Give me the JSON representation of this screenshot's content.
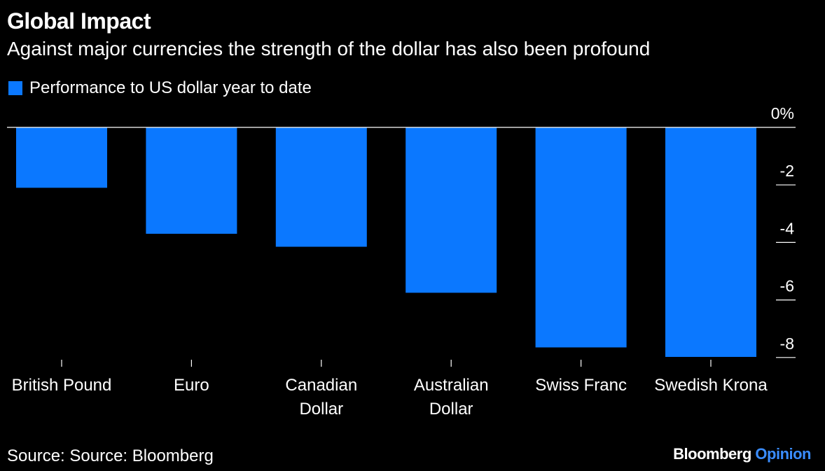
{
  "header": {
    "title": "Global Impact",
    "subtitle": "Against major currencies the strength of the dollar has also been profound"
  },
  "legend": {
    "label": "Performance to US dollar year to date",
    "color": "#0b78ff"
  },
  "footer": {
    "source": "Source: Source: Bloomberg",
    "brand_main": "Bloomberg",
    "brand_accent": "Opinion",
    "brand_accent_color": "#3a8dff"
  },
  "chart_data": {
    "type": "bar",
    "categories": [
      [
        "British Pound"
      ],
      [
        "Euro"
      ],
      [
        "Canadian",
        "Dollar"
      ],
      [
        "Australian",
        "Dollar"
      ],
      [
        "Swiss Franc"
      ],
      [
        "Swedish Krona"
      ]
    ],
    "series": [
      {
        "name": "Performance to US dollar year to date",
        "values": [
          -2.1,
          -3.7,
          -4.15,
          -5.75,
          -7.65,
          -7.98
        ],
        "color": "#0b78ff"
      }
    ],
    "ylim": [
      -8,
      0
    ],
    "yticks": [
      0,
      -2,
      -4,
      -6,
      -8
    ],
    "ytick_labels": [
      "0%",
      "-2",
      "-4",
      "-6",
      "-8"
    ],
    "xlabel": "",
    "ylabel": "",
    "grid": false,
    "legend_position": "top-left",
    "axis_side": "right"
  }
}
